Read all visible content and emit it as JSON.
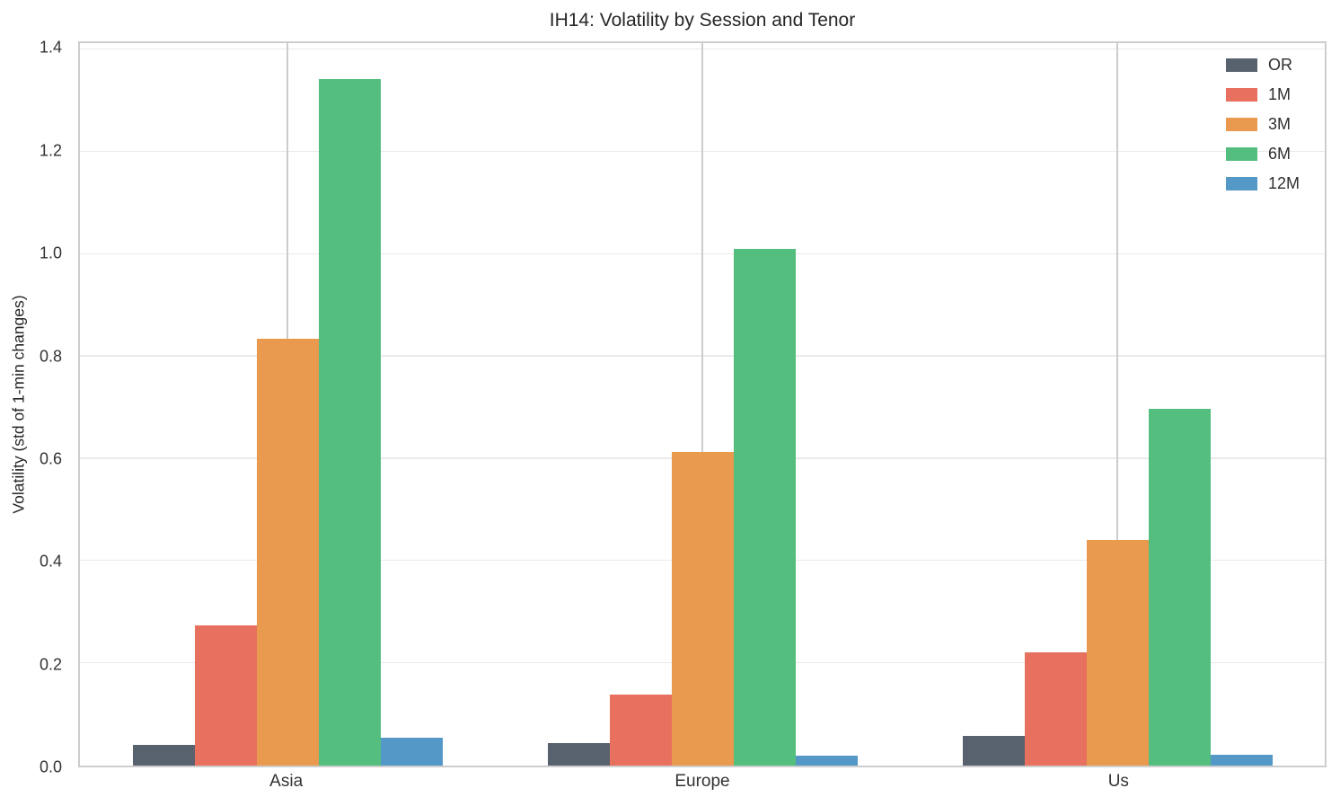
{
  "figure": {
    "title": "IH14: Volatility by Session and Tenor",
    "ylabel": "Volatility (std of 1-min changes)"
  },
  "chart_data": {
    "type": "bar",
    "categories": [
      "Asia",
      "Europe",
      "Us"
    ],
    "series": [
      {
        "name": "OR",
        "color": "#57626E",
        "values": [
          0.04,
          0.044,
          0.058
        ]
      },
      {
        "name": "1M",
        "color": "#E8705F",
        "values": [
          0.274,
          0.139,
          0.222
        ]
      },
      {
        "name": "3M",
        "color": "#E99A4F",
        "values": [
          0.834,
          0.613,
          0.442
        ]
      },
      {
        "name": "6M",
        "color": "#53BE7E",
        "values": [
          1.342,
          1.011,
          0.698
        ]
      },
      {
        "name": "12M",
        "color": "#5498C7",
        "values": [
          0.055,
          0.02,
          0.021
        ]
      }
    ],
    "title": "IH14: Volatility by Session and Tenor",
    "xlabel": "",
    "ylabel": "Volatility (std of 1-min changes)",
    "ylim": [
      0,
      1.413
    ],
    "yticks": [
      0.0,
      0.2,
      0.4,
      0.6,
      0.8,
      1.0,
      1.2,
      1.4
    ],
    "grid": true,
    "legend_position": "upper right"
  },
  "colors": {
    "background": "#ffffff",
    "spine": "#cdcdcd",
    "grid_horizontal": "#eaeaea",
    "grid_vertical": "#cccccc",
    "text": "#262626"
  }
}
